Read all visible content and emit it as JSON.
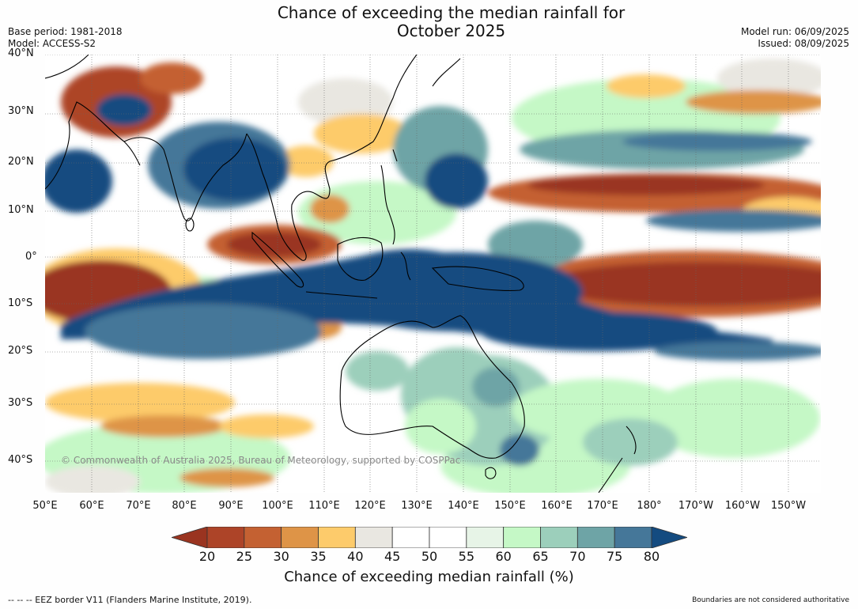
{
  "title": {
    "line1": "Chance of exceeding the median rainfall for",
    "line2": "October 2025"
  },
  "meta": {
    "base_period": "Base period: 1981-2018",
    "model": "Model: ACCESS-S2",
    "model_run": "Model run: 06/09/2025",
    "issued": "Issued: 08/09/2025"
  },
  "latitude_labels": [
    "40°N",
    "30°N",
    "20°N",
    "10°N",
    "0°",
    "10°S",
    "20°S",
    "30°S",
    "40°S"
  ],
  "longitude_labels": [
    "50°E",
    "60°E",
    "70°E",
    "80°E",
    "90°E",
    "100°E",
    "110°E",
    "120°E",
    "130°E",
    "140°E",
    "150°E",
    "160°E",
    "170°E",
    "180°",
    "170°W",
    "160°W",
    "150°W"
  ],
  "copyright": "© Commonwealth of Australia 2025, Bureau of Meteorology, supported by COSPPac",
  "colorbar": {
    "ticks": [
      "20",
      "25",
      "30",
      "35",
      "40",
      "45",
      "50",
      "55",
      "60",
      "65",
      "70",
      "75",
      "80"
    ],
    "colors": [
      "#9a3420",
      "#ad4428",
      "#c46132",
      "#de9447",
      "#fdcb6b",
      "#e9e7e1",
      "#ffffff",
      "#ffffff",
      "#e7f4e7",
      "#c5f8c6",
      "#9ccfbb",
      "#6ea4a6",
      "#457799",
      "#144b80"
    ],
    "label": "Chance of exceeding median rainfall (%)"
  },
  "footer": {
    "left": "--  --  -- EEZ border V11 (Flanders Marine Institute, 2019).",
    "right": "Boundaries are not considered authoritative"
  }
}
